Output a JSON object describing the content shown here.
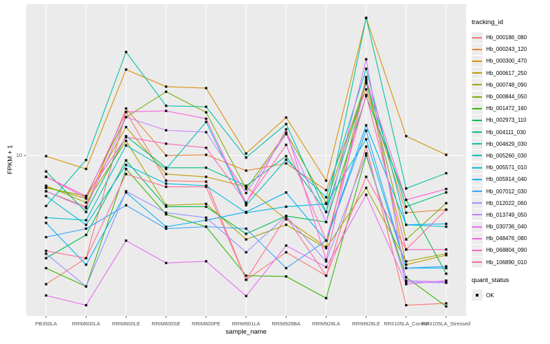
{
  "chart_data": {
    "type": "line",
    "title": "",
    "xlabel": "sample_name",
    "ylabel": "FPKM + 1",
    "y_scale": "log10",
    "y_tick_label": "10",
    "y_ticks": [
      10
    ],
    "ylim": [
      1.0,
      95
    ],
    "grid": "ggplot-grey-panel-white-gridlines",
    "panel_color": "#EBEBEB",
    "gridline_color": "#FFFFFF",
    "tick_label_color": "#4D4D4D",
    "marker": "black-square",
    "categories": [
      "PB350LA",
      "RRIM600LA",
      "RRIM600LE",
      "RRIM600SE",
      "RRIM600PE",
      "RRIM901LA",
      "RRIM928BA",
      "RRIM928LA",
      "RRIM928LE",
      "RRII105LA_Control",
      "RRII105LA_Stressed"
    ],
    "legend": {
      "title": "tracking_id",
      "position": "right"
    },
    "quant_legend": {
      "title": "quant_status",
      "ok_label": "OK"
    },
    "series": [
      {
        "name": "Hb_000186_080",
        "color": "#F8766D",
        "values": [
          1.5,
          2.2,
          19,
          6.9,
          6.8,
          1.6,
          2.4,
          1.7,
          11.4,
          1.1,
          1.13
        ]
      },
      {
        "name": "Hb_000243_120",
        "color": "#EA8331",
        "values": [
          5.9,
          4.7,
          20,
          10,
          10.1,
          8.0,
          8.9,
          6.0,
          26.5,
          4.3,
          4.5
        ]
      },
      {
        "name": "Hb_000300_470",
        "color": "#D89000",
        "values": [
          9.9,
          8.2,
          35.5,
          27.6,
          27,
          10.3,
          17.5,
          6.9,
          76,
          13.3,
          10.1
        ]
      },
      {
        "name": "Hb_000617_250",
        "color": "#C09B00",
        "values": [
          6.3,
          5.3,
          15.2,
          7.6,
          7.3,
          6.3,
          3.9,
          2.6,
          31.8,
          2.0,
          2.3
        ]
      },
      {
        "name": "Hb_000748_090",
        "color": "#A3A500",
        "values": [
          6.4,
          5.0,
          12.4,
          4.8,
          4.9,
          2.9,
          3.6,
          2.55,
          6.2,
          2.1,
          2.35
        ]
      },
      {
        "name": "Hb_000844_050",
        "color": "#7CAE00",
        "values": [
          6.2,
          5.5,
          17.6,
          25.6,
          18.9,
          6.1,
          14,
          4.95,
          29.8,
          2.9,
          4.95
        ]
      },
      {
        "name": "Hb_001472_160",
        "color": "#39B600",
        "values": [
          1.9,
          1.45,
          8.2,
          4.2,
          3.5,
          1.7,
          1.68,
          1.22,
          10,
          1.66,
          1.08
        ]
      },
      {
        "name": "Hb_002973_110",
        "color": "#00BB4E",
        "values": [
          2.2,
          3.1,
          9.3,
          4.7,
          4.7,
          3.15,
          4.1,
          3.75,
          24,
          5.2,
          1.75
        ]
      },
      {
        "name": "Hb_004111_030",
        "color": "#00BF7D",
        "values": [
          7.9,
          4.35,
          13.3,
          8.35,
          8.35,
          6.4,
          9.9,
          4.35,
          29,
          4.7,
          5.8
        ]
      },
      {
        "name": "Hb_004629_030",
        "color": "#00C1A3",
        "values": [
          4.75,
          9.35,
          46,
          20.8,
          20.5,
          9.7,
          15.9,
          4.35,
          76,
          6.15,
          7.7
        ]
      },
      {
        "name": "Hb_005260_030",
        "color": "#00BFC4",
        "values": [
          4.0,
          3.85,
          11.6,
          8.2,
          16.4,
          4.8,
          9.4,
          5.4,
          35.9,
          3.6,
          3.5
        ]
      },
      {
        "name": "Hb_005571_010",
        "color": "#00BAE0",
        "values": [
          5.5,
          3.6,
          8.7,
          6.6,
          6.4,
          4.3,
          4.7,
          4.9,
          12.7,
          1.9,
          1.9
        ]
      },
      {
        "name": "Hb_005914_040",
        "color": "#00B0F6",
        "values": [
          3.7,
          2.0,
          5.8,
          3.5,
          3.85,
          4.35,
          5.8,
          2.85,
          15.6,
          3.6,
          3.65
        ]
      },
      {
        "name": "Hb_007012_030",
        "color": "#35A2FF",
        "values": [
          3.0,
          3.4,
          4.8,
          3.4,
          3.5,
          3.4,
          1.9,
          2.85,
          14.4,
          1.9,
          1.95
        ]
      },
      {
        "name": "Hb_012022_060",
        "color": "#9590FF",
        "values": [
          2.35,
          1.45,
          5.9,
          4.3,
          4.0,
          2.4,
          4.1,
          2.1,
          10.3,
          1.55,
          1.53
        ]
      },
      {
        "name": "Hb_013749_050",
        "color": "#C77CFF",
        "values": [
          5.9,
          4.6,
          17.6,
          14.5,
          14.1,
          5.75,
          13.7,
          3.75,
          41.3,
          1.58,
          1.55
        ]
      },
      {
        "name": "Hb_030736_040",
        "color": "#E76BF3",
        "values": [
          1.27,
          1.1,
          2.85,
          2.05,
          2.1,
          1.26,
          2.65,
          1.93,
          5.6,
          1.5,
          1.58
        ]
      },
      {
        "name": "Hb_048476_080",
        "color": "#FA62DB",
        "values": [
          7.3,
          5.35,
          19,
          19.3,
          17.2,
          4.95,
          14.7,
          2.15,
          30.7,
          5.2,
          6.1
        ]
      },
      {
        "name": "Hb_068804_090",
        "color": "#FF62BC",
        "values": [
          7.3,
          5.5,
          13.1,
          11.9,
          11.2,
          5.0,
          11.7,
          2.85,
          24.4,
          2.5,
          2.5
        ]
      },
      {
        "name": "Hb_106890_010",
        "color": "#FF6A98",
        "values": [
          2.45,
          2.2,
          7.6,
          6.3,
          6.3,
          1.6,
          4.05,
          1.7,
          7.3,
          2.5,
          4.5
        ]
      }
    ]
  }
}
